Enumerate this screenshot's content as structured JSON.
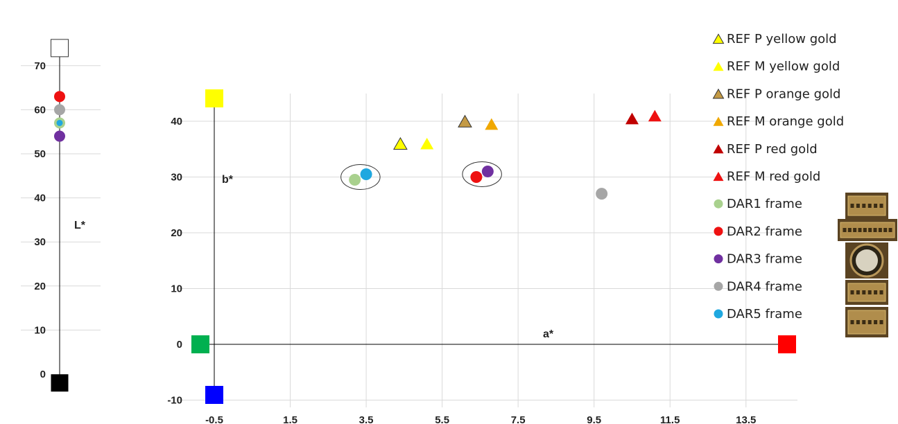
{
  "chart_data": [
    {
      "type": "scatter",
      "title": "",
      "xlabel": "",
      "ylabel": "L*",
      "ylim": [
        -10,
        75
      ],
      "yticks": [
        0,
        10,
        20,
        30,
        40,
        50,
        60,
        70
      ],
      "grid": true,
      "series": [
        {
          "name": "white",
          "marker": "square",
          "color": "#ffffff",
          "stroke": "#333333",
          "x": [
            0
          ],
          "y": [
            74
          ]
        },
        {
          "name": "black",
          "marker": "square",
          "color": "#000000",
          "x": [
            0
          ],
          "y": [
            -2
          ]
        },
        {
          "name": "DAR2 frame",
          "marker": "circle",
          "color": "#ee1111",
          "x": [
            0
          ],
          "y": [
            63
          ]
        },
        {
          "name": "DAR4 frame",
          "marker": "circle",
          "color": "#a6a6a6",
          "x": [
            0
          ],
          "y": [
            60
          ]
        },
        {
          "name": "DAR1 frame",
          "marker": "circle",
          "color": "#a9d18e",
          "x": [
            0
          ],
          "y": [
            57
          ]
        },
        {
          "name": "DAR5 frame",
          "marker": "circle",
          "color": "#1fa8e0",
          "x": [
            0
          ],
          "y": [
            57
          ],
          "small": true
        },
        {
          "name": "DAR3 frame",
          "marker": "circle",
          "color": "#7030a0",
          "x": [
            0
          ],
          "y": [
            54
          ]
        }
      ]
    },
    {
      "type": "scatter",
      "title": "",
      "xlabel": "a*",
      "ylabel": "b*",
      "xlim": [
        -0.5,
        15.0
      ],
      "ylim": [
        -10,
        45
      ],
      "xticks": [
        "-0.5",
        "1.5",
        "3.5",
        "5.5",
        "7.5",
        "9.5",
        "11.5",
        "13.5"
      ],
      "yticks": [
        "-10",
        "0",
        "10",
        "20",
        "30",
        "40"
      ],
      "grid": true,
      "legend_position": "right",
      "axis_colors": {
        "b_plus": "#ffff00",
        "b_minus": "#0000ff",
        "a_minus": "#00b050",
        "a_plus": "#ff0000"
      },
      "series": [
        {
          "name": "REF P yellow gold",
          "marker": "triangle",
          "color": "#ffff00",
          "stroke": "#333333",
          "x": [
            4.4
          ],
          "y": [
            36
          ]
        },
        {
          "name": "REF M yellow gold",
          "marker": "triangle",
          "color": "#ffff00",
          "x": [
            5.1
          ],
          "y": [
            36
          ]
        },
        {
          "name": "REF P orange gold",
          "marker": "triangle",
          "color": "#c49a45",
          "stroke": "#333333",
          "x": [
            6.1
          ],
          "y": [
            40
          ]
        },
        {
          "name": "REF M orange gold",
          "marker": "triangle",
          "color": "#f0a800",
          "x": [
            6.8
          ],
          "y": [
            39.5
          ]
        },
        {
          "name": "REF P red gold",
          "marker": "triangle",
          "color": "#c00000",
          "x": [
            10.5
          ],
          "y": [
            40.5
          ]
        },
        {
          "name": "REF M red gold",
          "marker": "triangle",
          "color": "#ee1111",
          "x": [
            11.1
          ],
          "y": [
            41
          ]
        },
        {
          "name": "DAR1 frame",
          "marker": "circle",
          "color": "#a9d18e",
          "x": [
            3.2
          ],
          "y": [
            29.5
          ]
        },
        {
          "name": "DAR2 frame",
          "marker": "circle",
          "color": "#ee1111",
          "x": [
            6.4
          ],
          "y": [
            30
          ]
        },
        {
          "name": "DAR3 frame",
          "marker": "circle",
          "color": "#7030a0",
          "x": [
            6.7
          ],
          "y": [
            31
          ]
        },
        {
          "name": "DAR4 frame",
          "marker": "circle",
          "color": "#a6a6a6",
          "x": [
            9.7
          ],
          "y": [
            27
          ]
        },
        {
          "name": "DAR5 frame",
          "marker": "circle",
          "color": "#1fa8e0",
          "x": [
            3.5
          ],
          "y": [
            30.5
          ]
        }
      ]
    }
  ]
}
